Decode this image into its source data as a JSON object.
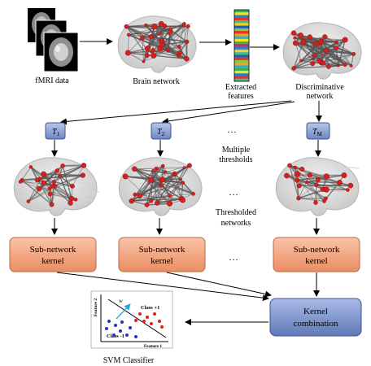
{
  "top_row": {
    "fmri_label": "fMRI data",
    "brain_network_label": "Brain network",
    "extracted_features_label": [
      "Extracted",
      "features"
    ],
    "discriminative_network_label": [
      "Discriminative",
      "network"
    ]
  },
  "thresholds": {
    "t1": {
      "base": "T",
      "sub": "1"
    },
    "t2": {
      "base": "T",
      "sub": "2"
    },
    "tm": {
      "base": "T",
      "sub": "M"
    },
    "ellipsis": "…",
    "multiple_label": [
      "Multiple",
      "thresholds"
    ]
  },
  "thresholded": {
    "ellipsis": "…",
    "label": [
      "Thresholded",
      "networks"
    ]
  },
  "kernels": {
    "label": [
      "Sub-network",
      "kernel"
    ],
    "ellipsis": "…"
  },
  "kernel_combination_label": [
    "Kernel",
    "combination"
  ],
  "svm": {
    "caption": "SVM Classifier",
    "feature1": "Feature 1",
    "feature2": "Feature 2",
    "class_pos": "Class +1",
    "class_neg": "Class -1",
    "w_label": "w"
  },
  "colors": {
    "threshold_box": "#8ea3d4",
    "kernel_box": "#f2a27e",
    "combination_box": "#7c93c9",
    "node_red": "#d62020",
    "edge_gray": "#555555",
    "svm_red": "#e02020",
    "svm_blue": "#1f35c8",
    "svm_arrow": "#2aa3e0"
  },
  "feature_bar_colors": [
    "#35b34a",
    "#f2e41a",
    "#2a7bd4",
    "#e6332a",
    "#3fbf8f",
    "#f7d117",
    "#1d5fb3",
    "#8dc63f",
    "#e6332a",
    "#f4a11b",
    "#2bb0d6",
    "#f2e41a",
    "#35b34a",
    "#c42d6a",
    "#2a7bd4",
    "#f7d117",
    "#3fbf8f",
    "#1d5fb3",
    "#e6332a",
    "#8dc63f",
    "#f4a11b",
    "#2bb0d6",
    "#35b34a",
    "#f2e41a",
    "#2a7bd4",
    "#e6332a",
    "#3fbf8f"
  ]
}
